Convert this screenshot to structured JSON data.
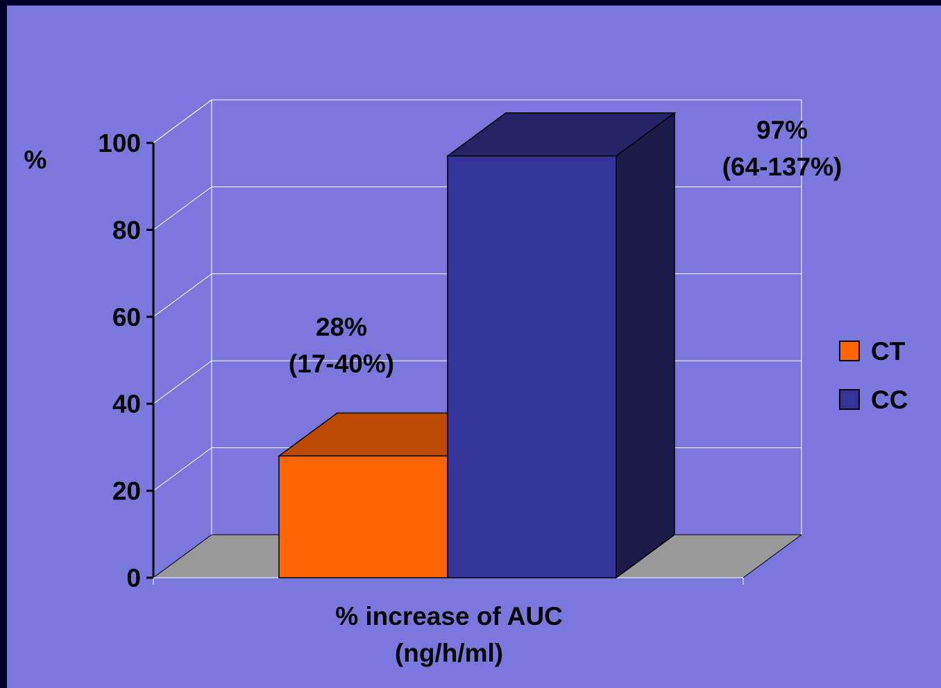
{
  "chart_data": {
    "type": "bar",
    "categories": [
      "% increase of AUC (ng/h/ml)"
    ],
    "category_label_lines": [
      "% increase of AUC",
      "(ng/h/ml)"
    ],
    "ylabel": "%",
    "ylim": [
      0,
      100
    ],
    "yticks": [
      "0",
      "20",
      "40",
      "60",
      "80",
      "100"
    ],
    "ytick_values": [
      0,
      20,
      40,
      60,
      80,
      100
    ],
    "grid": true,
    "three_d": true,
    "legend_position": "right",
    "series": [
      {
        "name": "CT",
        "values": [
          28
        ],
        "color": "#ff6600",
        "top_color": "#bb4a00",
        "annotation": [
          "28%",
          "(17-40%)"
        ]
      },
      {
        "name": "CC",
        "values": [
          97
        ],
        "color": "#333399",
        "top_color": "#232366",
        "side_color": "#1b1b4a",
        "annotation": [
          "97%",
          "(64-137%)"
        ]
      }
    ],
    "colors": {
      "background": "#7b78dd",
      "border": "#000028",
      "floor": "#999999",
      "grid": "#ffffff",
      "axis": "#000000"
    }
  }
}
